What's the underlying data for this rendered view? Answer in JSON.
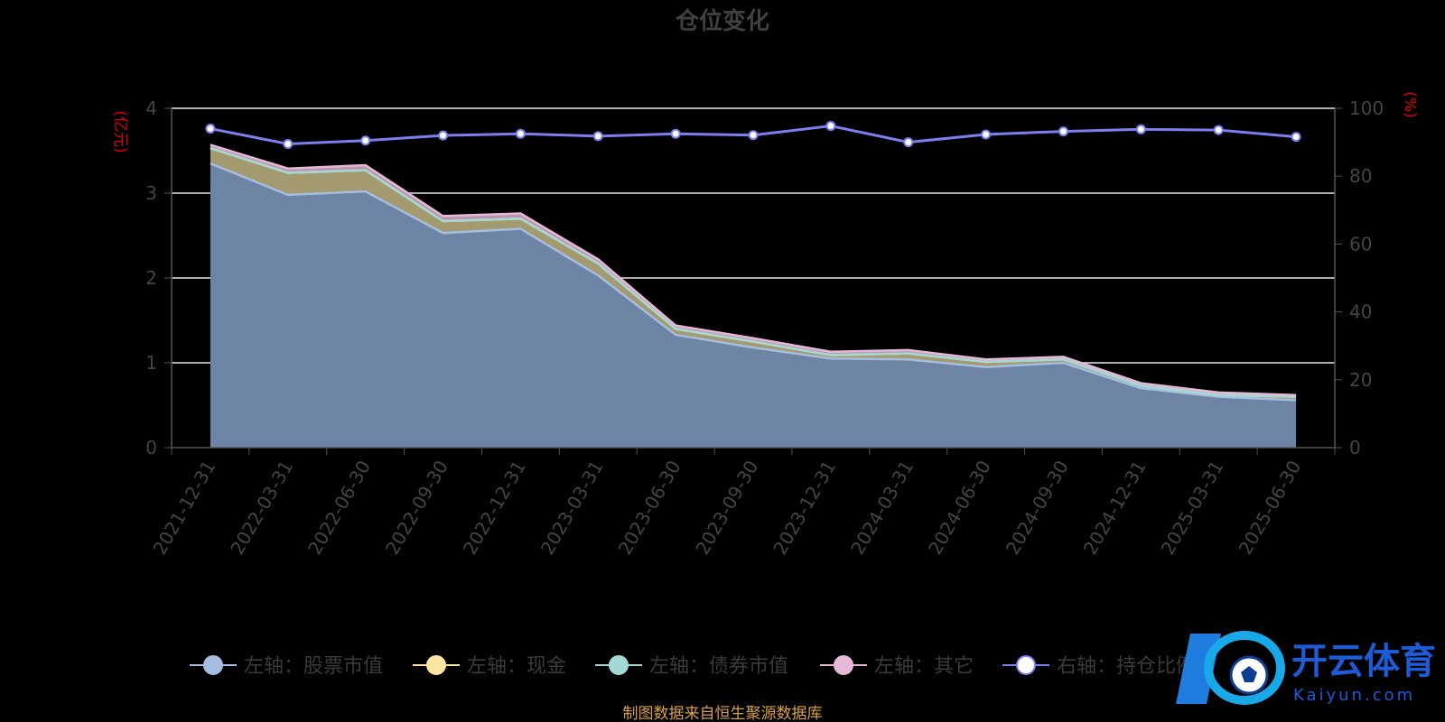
{
  "chart_data": {
    "type": "area",
    "title": "仓位变化",
    "left_axis_unit": "(亿元)",
    "right_axis_unit": "(%)",
    "ylim_left": [
      0,
      4
    ],
    "ylim_right": [
      0,
      100
    ],
    "left_ticks": [
      "0",
      "1",
      "2",
      "3",
      "4"
    ],
    "right_ticks": [
      "0",
      "20",
      "40",
      "60",
      "80",
      "100"
    ],
    "grid": true,
    "categories": [
      "2021-12-31",
      "2022-03-31",
      "2022-06-30",
      "2022-09-30",
      "2022-12-31",
      "2023-03-31",
      "2023-06-30",
      "2023-09-30",
      "2023-12-31",
      "2024-03-31",
      "2024-06-30",
      "2024-09-30",
      "2024-12-31",
      "2025-03-31",
      "2025-06-30"
    ],
    "series": [
      {
        "name": "左轴：股票市值",
        "axis": "left",
        "color": "#a5bde0",
        "values": [
          3.35,
          2.98,
          3.02,
          2.53,
          2.58,
          2.03,
          1.33,
          1.18,
          1.05,
          1.04,
          0.95,
          1.0,
          0.7,
          0.6,
          0.56
        ]
      },
      {
        "name": "左轴：现金",
        "axis": "left",
        "color": "#fbe5a3",
        "values": [
          0.18,
          0.26,
          0.25,
          0.14,
          0.12,
          0.14,
          0.07,
          0.07,
          0.04,
          0.07,
          0.06,
          0.04,
          0.03,
          0.02,
          0.04
        ]
      },
      {
        "name": "左轴：债券市值",
        "axis": "left",
        "color": "#a3d8d6",
        "values": [
          0,
          0,
          0,
          0,
          0,
          0,
          0,
          0,
          0,
          0,
          0,
          0,
          0,
          0,
          0
        ]
      },
      {
        "name": "左轴：其它",
        "axis": "left",
        "color": "#e6b8d8",
        "values": [
          0.04,
          0.05,
          0.06,
          0.06,
          0.06,
          0.05,
          0.04,
          0.04,
          0.04,
          0.04,
          0.03,
          0.03,
          0.03,
          0.03,
          0.02
        ]
      },
      {
        "name": "右轴：持仓比例",
        "axis": "right",
        "color": "#7b7ff0",
        "values": [
          94.0,
          89.5,
          90.5,
          92.0,
          92.5,
          91.8,
          92.5,
          92.1,
          94.8,
          90.0,
          92.3,
          93.2,
          93.8,
          93.6,
          91.6
        ]
      }
    ],
    "legend_position": "bottom",
    "source_note": "制图数据来自恒生聚源数据库"
  },
  "watermark": {
    "brand": "开云体育",
    "domain": "Kaiyun.com"
  }
}
